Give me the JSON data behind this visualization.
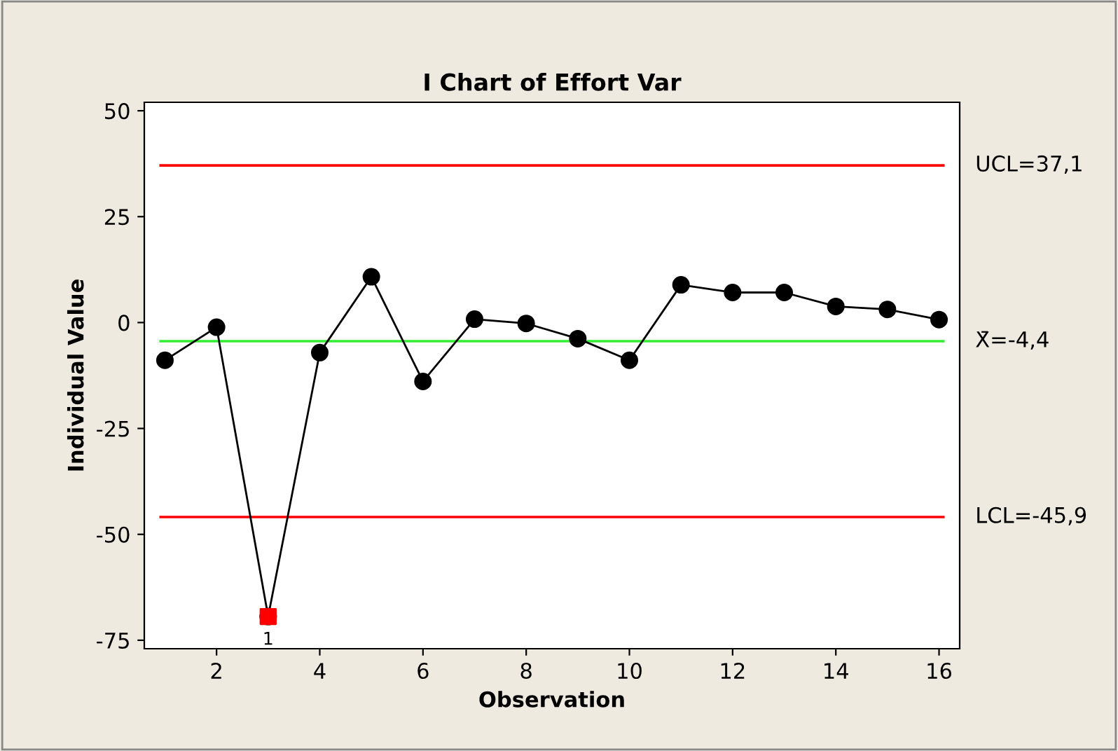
{
  "chart_data": {
    "type": "line",
    "title": "I Chart of Effort Var",
    "xlabel": "Observation",
    "ylabel": "Individual Value",
    "x": [
      1,
      2,
      3,
      4,
      5,
      6,
      7,
      8,
      9,
      10,
      11,
      12,
      13,
      14,
      15,
      16
    ],
    "series": [
      {
        "color": "#000000",
        "marker": "circle",
        "values": [
          -8.9,
          -1.1,
          -69.4,
          -7.1,
          10.8,
          -13.9,
          0.8,
          -0.2,
          -3.8,
          -8.9,
          8.9,
          7.1,
          7.1,
          3.8,
          3.1,
          0.7
        ]
      },
      {
        "type": "scatter",
        "x": [
          3
        ],
        "color": "#ff0000",
        "marker": "square",
        "values": [
          -69.4
        ]
      }
    ],
    "annotations": [
      {
        "text": "1",
        "x": 3,
        "y": -69.4
      }
    ],
    "ref_lines": [
      {
        "axis": "y",
        "value": 37.1,
        "label": "UCL=37,1",
        "color": "#ff0000"
      },
      {
        "axis": "y",
        "value": -4.4,
        "label": "X̄=-4,4",
        "color": "#33ee33"
      },
      {
        "axis": "y",
        "value": -45.9,
        "label": "LCL=-45,9",
        "color": "#ff0000"
      }
    ],
    "xlim": [
      0.6,
      16.4
    ],
    "ylim": [
      -77,
      52
    ],
    "xticks": [
      2,
      4,
      6,
      8,
      10,
      12,
      14,
      16
    ],
    "yticks": [
      -75,
      -50,
      -25,
      0,
      25,
      50
    ],
    "grid": false,
    "legend": false
  }
}
